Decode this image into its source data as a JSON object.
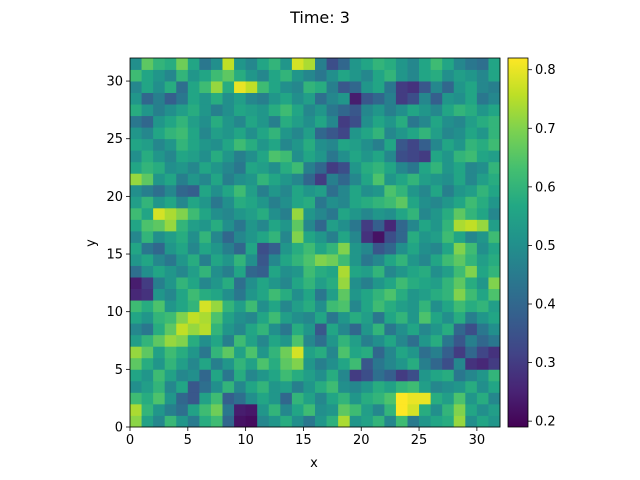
{
  "chart_data": {
    "type": "heatmap",
    "title": "Time: 3",
    "xlabel": "x",
    "ylabel": "y",
    "grid": false,
    "xlim": [
      0,
      32
    ],
    "ylim": [
      0,
      32
    ],
    "xticks": [
      0,
      5,
      10,
      15,
      20,
      25,
      30
    ],
    "yticks": [
      0,
      5,
      10,
      15,
      20,
      25,
      30
    ],
    "colormap": "viridis",
    "colorbar": {
      "range": [
        0.19,
        0.82
      ],
      "ticks": [
        0.2,
        0.3,
        0.4,
        0.5,
        0.6,
        0.7,
        0.8
      ]
    },
    "grid_size": [
      32,
      32
    ],
    "values": [
      [
        0.71,
        0.55,
        0.48,
        0.61,
        0.52,
        0.45,
        0.58,
        0.62,
        0.4,
        0.22,
        0.21,
        0.48,
        0.52,
        0.58,
        0.5,
        0.44,
        0.52,
        0.59,
        0.74,
        0.52,
        0.55,
        0.6,
        0.48,
        0.62,
        0.45,
        0.52,
        0.56,
        0.58,
        0.72,
        0.5,
        0.56,
        0.52
      ],
      [
        0.74,
        0.6,
        0.52,
        0.46,
        0.42,
        0.55,
        0.62,
        0.68,
        0.44,
        0.24,
        0.23,
        0.52,
        0.6,
        0.48,
        0.56,
        0.62,
        0.5,
        0.52,
        0.66,
        0.62,
        0.54,
        0.48,
        0.6,
        0.82,
        0.78,
        0.58,
        0.5,
        0.6,
        0.7,
        0.56,
        0.5,
        0.54
      ],
      [
        0.62,
        0.58,
        0.64,
        0.52,
        0.4,
        0.36,
        0.55,
        0.62,
        0.38,
        0.42,
        0.5,
        0.56,
        0.52,
        0.4,
        0.6,
        0.55,
        0.48,
        0.56,
        0.6,
        0.52,
        0.58,
        0.6,
        0.64,
        0.82,
        0.8,
        0.8,
        0.58,
        0.54,
        0.64,
        0.52,
        0.58,
        0.48
      ],
      [
        0.5,
        0.54,
        0.6,
        0.48,
        0.56,
        0.36,
        0.42,
        0.5,
        0.6,
        0.48,
        0.56,
        0.6,
        0.52,
        0.54,
        0.46,
        0.52,
        0.58,
        0.62,
        0.5,
        0.48,
        0.52,
        0.58,
        0.55,
        0.6,
        0.62,
        0.54,
        0.48,
        0.5,
        0.52,
        0.58,
        0.5,
        0.56
      ],
      [
        0.56,
        0.52,
        0.62,
        0.55,
        0.48,
        0.5,
        0.4,
        0.56,
        0.44,
        0.58,
        0.48,
        0.52,
        0.56,
        0.62,
        0.58,
        0.54,
        0.5,
        0.58,
        0.48,
        0.3,
        0.34,
        0.42,
        0.38,
        0.3,
        0.34,
        0.52,
        0.56,
        0.58,
        0.44,
        0.48,
        0.52,
        0.6
      ],
      [
        0.66,
        0.58,
        0.52,
        0.6,
        0.54,
        0.48,
        0.56,
        0.46,
        0.52,
        0.6,
        0.55,
        0.64,
        0.58,
        0.66,
        0.7,
        0.52,
        0.46,
        0.5,
        0.56,
        0.62,
        0.36,
        0.44,
        0.48,
        0.52,
        0.58,
        0.46,
        0.4,
        0.34,
        0.48,
        0.28,
        0.26,
        0.3
      ],
      [
        0.72,
        0.66,
        0.55,
        0.62,
        0.58,
        0.52,
        0.44,
        0.6,
        0.66,
        0.55,
        0.64,
        0.52,
        0.6,
        0.68,
        0.78,
        0.55,
        0.58,
        0.48,
        0.64,
        0.56,
        0.58,
        0.4,
        0.48,
        0.56,
        0.52,
        0.42,
        0.46,
        0.38,
        0.3,
        0.4,
        0.32,
        0.28
      ],
      [
        0.54,
        0.6,
        0.66,
        0.72,
        0.7,
        0.58,
        0.5,
        0.56,
        0.46,
        0.62,
        0.55,
        0.48,
        0.56,
        0.52,
        0.64,
        0.48,
        0.42,
        0.52,
        0.6,
        0.54,
        0.46,
        0.5,
        0.56,
        0.48,
        0.42,
        0.52,
        0.58,
        0.44,
        0.36,
        0.46,
        0.4,
        0.44
      ],
      [
        0.48,
        0.44,
        0.58,
        0.66,
        0.76,
        0.72,
        0.75,
        0.6,
        0.52,
        0.48,
        0.56,
        0.6,
        0.5,
        0.44,
        0.58,
        0.52,
        0.36,
        0.56,
        0.48,
        0.4,
        0.52,
        0.6,
        0.44,
        0.5,
        0.56,
        0.48,
        0.52,
        0.58,
        0.4,
        0.34,
        0.44,
        0.5
      ],
      [
        0.56,
        0.52,
        0.6,
        0.62,
        0.7,
        0.76,
        0.74,
        0.64,
        0.55,
        0.5,
        0.48,
        0.56,
        0.62,
        0.54,
        0.5,
        0.48,
        0.56,
        0.44,
        0.52,
        0.58,
        0.54,
        0.44,
        0.56,
        0.6,
        0.52,
        0.64,
        0.56,
        0.5,
        0.58,
        0.46,
        0.52,
        0.56
      ],
      [
        0.62,
        0.58,
        0.64,
        0.52,
        0.56,
        0.6,
        0.78,
        0.72,
        0.6,
        0.54,
        0.62,
        0.5,
        0.56,
        0.48,
        0.54,
        0.58,
        0.5,
        0.62,
        0.64,
        0.48,
        0.56,
        0.62,
        0.58,
        0.54,
        0.52,
        0.6,
        0.5,
        0.56,
        0.62,
        0.58,
        0.6,
        0.54
      ],
      [
        0.26,
        0.28,
        0.52,
        0.48,
        0.56,
        0.62,
        0.58,
        0.56,
        0.5,
        0.44,
        0.52,
        0.56,
        0.62,
        0.58,
        0.5,
        0.56,
        0.44,
        0.54,
        0.66,
        0.52,
        0.56,
        0.6,
        0.64,
        0.58,
        0.52,
        0.54,
        0.58,
        0.6,
        0.7,
        0.62,
        0.56,
        0.64
      ],
      [
        0.24,
        0.3,
        0.46,
        0.52,
        0.6,
        0.56,
        0.48,
        0.52,
        0.58,
        0.42,
        0.5,
        0.56,
        0.52,
        0.48,
        0.56,
        0.6,
        0.54,
        0.58,
        0.72,
        0.5,
        0.46,
        0.52,
        0.56,
        0.62,
        0.58,
        0.56,
        0.54,
        0.6,
        0.66,
        0.58,
        0.52,
        0.7
      ],
      [
        0.42,
        0.5,
        0.56,
        0.52,
        0.48,
        0.54,
        0.6,
        0.5,
        0.46,
        0.56,
        0.4,
        0.38,
        0.56,
        0.5,
        0.52,
        0.62,
        0.58,
        0.56,
        0.74,
        0.56,
        0.54,
        0.6,
        0.48,
        0.52,
        0.56,
        0.58,
        0.5,
        0.54,
        0.62,
        0.7,
        0.56,
        0.6
      ],
      [
        0.52,
        0.56,
        0.48,
        0.44,
        0.52,
        0.58,
        0.46,
        0.56,
        0.52,
        0.6,
        0.5,
        0.36,
        0.48,
        0.56,
        0.6,
        0.64,
        0.7,
        0.68,
        0.62,
        0.52,
        0.44,
        0.48,
        0.56,
        0.6,
        0.52,
        0.48,
        0.56,
        0.62,
        0.66,
        0.6,
        0.54,
        0.58
      ],
      [
        0.56,
        0.44,
        0.4,
        0.52,
        0.56,
        0.48,
        0.56,
        0.52,
        0.46,
        0.4,
        0.56,
        0.34,
        0.38,
        0.52,
        0.58,
        0.62,
        0.56,
        0.6,
        0.7,
        0.52,
        0.48,
        0.36,
        0.4,
        0.5,
        0.56,
        0.5,
        0.48,
        0.56,
        0.7,
        0.62,
        0.5,
        0.56
      ],
      [
        0.48,
        0.6,
        0.5,
        0.54,
        0.58,
        0.5,
        0.6,
        0.48,
        0.4,
        0.48,
        0.52,
        0.56,
        0.6,
        0.48,
        0.7,
        0.56,
        0.52,
        0.46,
        0.56,
        0.48,
        0.28,
        0.22,
        0.34,
        0.4,
        0.58,
        0.52,
        0.54,
        0.62,
        0.56,
        0.48,
        0.52,
        0.62
      ],
      [
        0.56,
        0.64,
        0.66,
        0.72,
        0.6,
        0.54,
        0.52,
        0.58,
        0.5,
        0.44,
        0.52,
        0.48,
        0.56,
        0.52,
        0.66,
        0.48,
        0.4,
        0.54,
        0.5,
        0.44,
        0.3,
        0.38,
        0.26,
        0.4,
        0.48,
        0.56,
        0.52,
        0.6,
        0.74,
        0.76,
        0.72,
        0.54
      ],
      [
        0.62,
        0.56,
        0.78,
        0.74,
        0.7,
        0.62,
        0.56,
        0.5,
        0.48,
        0.52,
        0.54,
        0.58,
        0.5,
        0.46,
        0.72,
        0.52,
        0.48,
        0.44,
        0.56,
        0.52,
        0.48,
        0.52,
        0.5,
        0.56,
        0.6,
        0.48,
        0.52,
        0.58,
        0.66,
        0.6,
        0.56,
        0.48
      ],
      [
        0.54,
        0.6,
        0.52,
        0.56,
        0.48,
        0.56,
        0.52,
        0.44,
        0.5,
        0.58,
        0.56,
        0.52,
        0.46,
        0.5,
        0.56,
        0.58,
        0.44,
        0.5,
        0.48,
        0.56,
        0.58,
        0.6,
        0.62,
        0.66,
        0.56,
        0.5,
        0.48,
        0.52,
        0.56,
        0.62,
        0.58,
        0.52
      ],
      [
        0.5,
        0.46,
        0.42,
        0.48,
        0.4,
        0.38,
        0.56,
        0.5,
        0.56,
        0.62,
        0.54,
        0.46,
        0.52,
        0.48,
        0.56,
        0.52,
        0.54,
        0.42,
        0.48,
        0.56,
        0.5,
        0.52,
        0.64,
        0.6,
        0.52,
        0.48,
        0.56,
        0.46,
        0.52,
        0.54,
        0.6,
        0.56
      ],
      [
        0.72,
        0.66,
        0.52,
        0.56,
        0.46,
        0.52,
        0.48,
        0.56,
        0.46,
        0.5,
        0.52,
        0.6,
        0.56,
        0.52,
        0.48,
        0.4,
        0.3,
        0.46,
        0.4,
        0.48,
        0.56,
        0.64,
        0.52,
        0.56,
        0.6,
        0.54,
        0.52,
        0.5,
        0.56,
        0.48,
        0.54,
        0.58
      ],
      [
        0.56,
        0.6,
        0.58,
        0.5,
        0.52,
        0.48,
        0.56,
        0.52,
        0.48,
        0.44,
        0.56,
        0.54,
        0.5,
        0.58,
        0.62,
        0.46,
        0.4,
        0.3,
        0.34,
        0.52,
        0.58,
        0.6,
        0.56,
        0.48,
        0.44,
        0.56,
        0.6,
        0.52,
        0.56,
        0.48,
        0.5,
        0.6
      ],
      [
        0.5,
        0.58,
        0.52,
        0.48,
        0.56,
        0.54,
        0.5,
        0.58,
        0.52,
        0.46,
        0.5,
        0.56,
        0.64,
        0.62,
        0.5,
        0.56,
        0.52,
        0.44,
        0.5,
        0.56,
        0.52,
        0.56,
        0.48,
        0.34,
        0.32,
        0.3,
        0.56,
        0.52,
        0.6,
        0.62,
        0.56,
        0.54
      ],
      [
        0.56,
        0.54,
        0.48,
        0.52,
        0.6,
        0.56,
        0.52,
        0.5,
        0.56,
        0.62,
        0.58,
        0.52,
        0.56,
        0.48,
        0.52,
        0.58,
        0.5,
        0.48,
        0.56,
        0.54,
        0.5,
        0.46,
        0.56,
        0.36,
        0.32,
        0.38,
        0.48,
        0.56,
        0.52,
        0.6,
        0.58,
        0.62
      ],
      [
        0.52,
        0.48,
        0.56,
        0.6,
        0.62,
        0.56,
        0.48,
        0.54,
        0.52,
        0.56,
        0.5,
        0.56,
        0.6,
        0.52,
        0.48,
        0.54,
        0.4,
        0.36,
        0.32,
        0.52,
        0.56,
        0.6,
        0.48,
        0.52,
        0.56,
        0.6,
        0.54,
        0.48,
        0.5,
        0.56,
        0.52,
        0.6
      ],
      [
        0.44,
        0.4,
        0.52,
        0.56,
        0.6,
        0.54,
        0.5,
        0.58,
        0.52,
        0.48,
        0.56,
        0.52,
        0.46,
        0.58,
        0.54,
        0.5,
        0.56,
        0.48,
        0.3,
        0.34,
        0.5,
        0.56,
        0.52,
        0.58,
        0.44,
        0.48,
        0.56,
        0.5,
        0.48,
        0.54,
        0.58,
        0.6
      ],
      [
        0.58,
        0.52,
        0.46,
        0.5,
        0.54,
        0.58,
        0.52,
        0.46,
        0.5,
        0.56,
        0.54,
        0.52,
        0.58,
        0.62,
        0.56,
        0.48,
        0.52,
        0.44,
        0.4,
        0.36,
        0.48,
        0.52,
        0.46,
        0.5,
        0.56,
        0.52,
        0.48,
        0.56,
        0.6,
        0.58,
        0.52,
        0.56
      ],
      [
        0.52,
        0.4,
        0.46,
        0.38,
        0.44,
        0.56,
        0.52,
        0.58,
        0.5,
        0.54,
        0.48,
        0.46,
        0.52,
        0.56,
        0.5,
        0.54,
        0.42,
        0.48,
        0.52,
        0.24,
        0.36,
        0.4,
        0.46,
        0.3,
        0.34,
        0.48,
        0.38,
        0.52,
        0.5,
        0.56,
        0.44,
        0.48
      ],
      [
        0.48,
        0.56,
        0.5,
        0.58,
        0.42,
        0.56,
        0.62,
        0.72,
        0.58,
        0.8,
        0.76,
        0.62,
        0.56,
        0.5,
        0.48,
        0.6,
        0.58,
        0.46,
        0.36,
        0.4,
        0.52,
        0.56,
        0.44,
        0.3,
        0.28,
        0.36,
        0.48,
        0.4,
        0.52,
        0.56,
        0.48,
        0.46
      ],
      [
        0.62,
        0.56,
        0.52,
        0.48,
        0.6,
        0.52,
        0.56,
        0.62,
        0.66,
        0.58,
        0.52,
        0.48,
        0.56,
        0.6,
        0.52,
        0.48,
        0.44,
        0.5,
        0.56,
        0.52,
        0.48,
        0.56,
        0.6,
        0.52,
        0.48,
        0.56,
        0.58,
        0.5,
        0.54,
        0.52,
        0.48,
        0.56
      ],
      [
        0.5,
        0.66,
        0.6,
        0.58,
        0.68,
        0.56,
        0.44,
        0.5,
        0.76,
        0.52,
        0.48,
        0.56,
        0.6,
        0.52,
        0.78,
        0.74,
        0.46,
        0.34,
        0.4,
        0.52,
        0.56,
        0.6,
        0.58,
        0.52,
        0.48,
        0.56,
        0.62,
        0.56,
        0.48,
        0.44,
        0.42,
        0.56
      ]
    ]
  }
}
